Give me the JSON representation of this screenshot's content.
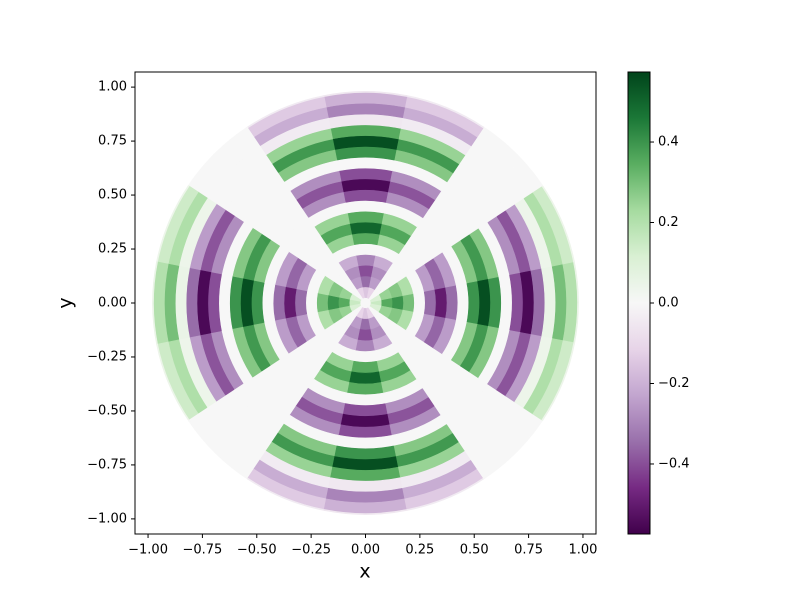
{
  "chart_data": {
    "type": "polar-field",
    "xlabel": "x",
    "ylabel": "y",
    "xlim": [
      -1.06,
      1.06
    ],
    "ylim": [
      -1.07,
      1.07
    ],
    "xticks": [
      {
        "value": -1,
        "label": "−1.00"
      },
      {
        "value": -0.75,
        "label": "−0.75"
      },
      {
        "value": -0.5,
        "label": "−0.50"
      },
      {
        "value": -0.25,
        "label": "−0.25"
      },
      {
        "value": 0,
        "label": "0.00"
      },
      0.25,
      {
        "value": 0.5,
        "label": "0.50"
      },
      0.75,
      {
        "value": 1,
        "label": "1.00"
      }
    ],
    "yticks": [
      {
        "value": -1,
        "label": "−1.00"
      },
      {
        "value": -0.75,
        "label": "−0.75"
      },
      {
        "value": -0.5,
        "label": "−0.50"
      },
      {
        "value": -0.25,
        "label": "−0.25"
      },
      {
        "value": 0,
        "label": "0.00"
      },
      0.25,
      {
        "value": 0.5,
        "label": "0.50"
      },
      0.75,
      {
        "value": 1,
        "label": "1.00"
      }
    ],
    "colormap": [
      "#40004b",
      "#762a83",
      "#9970ab",
      "#c2a5cf",
      "#e7d4e8",
      "#f7f7f7",
      "#d9f0d3",
      "#a6dba0",
      "#5aae61",
      "#1b7837",
      "#00441b"
    ],
    "zlim": [
      -0.574,
      0.574
    ],
    "zticks": [
      {
        "value": -0.4,
        "label": "−0.4"
      },
      {
        "value": -0.2,
        "label": "−0.2"
      },
      {
        "value": 0,
        "label": "0.0"
      },
      0.2,
      0.4
    ],
    "r": [
      0,
      0.05,
      0.1,
      0.15,
      0.2,
      0.25,
      0.3,
      0.35,
      0.4,
      0.45,
      0.5,
      0.55,
      0.6,
      0.65,
      0.7,
      0.75,
      0.8,
      0.85,
      0.9,
      0.95,
      1.0
    ],
    "theta": [
      0,
      22.5,
      45,
      67.5,
      90,
      112.5,
      135,
      157.5,
      180,
      202.5,
      225,
      247.5,
      270,
      292.5,
      315,
      337.5
    ],
    "z": [
      [
        0,
        0.15,
        0.35,
        0.4,
        0.3,
        0,
        -0.35,
        -0.5,
        -0.35,
        0,
        0.4,
        0.55,
        0.4,
        0,
        -0.4,
        -0.55,
        -0.35,
        0.05,
        0.3,
        0.2,
        0.05
      ],
      [
        0,
        0.11,
        0.25,
        0.28,
        0.21,
        0,
        -0.25,
        -0.36,
        -0.25,
        0,
        0.28,
        0.39,
        0.28,
        0,
        -0.28,
        -0.39,
        -0.25,
        0.04,
        0.21,
        0.14,
        0.04
      ],
      [
        0,
        0,
        0,
        0,
        0,
        0,
        0,
        0,
        0,
        0,
        0,
        0,
        0,
        0,
        0,
        0,
        0,
        0,
        0,
        0,
        0
      ],
      [
        0,
        -0.11,
        -0.25,
        -0.28,
        -0.21,
        0,
        0.25,
        0.36,
        0.25,
        0,
        -0.28,
        -0.39,
        -0.28,
        0,
        0.28,
        0.39,
        0.25,
        -0.04,
        -0.21,
        -0.14,
        -0.04
      ],
      [
        0,
        -0.15,
        -0.35,
        -0.4,
        -0.3,
        0,
        0.35,
        0.5,
        0.35,
        0,
        -0.4,
        -0.55,
        -0.4,
        0,
        0.4,
        0.55,
        0.35,
        -0.05,
        -0.3,
        -0.2,
        -0.05
      ],
      [
        0,
        -0.11,
        -0.25,
        -0.28,
        -0.21,
        0,
        0.25,
        0.36,
        0.25,
        0,
        -0.28,
        -0.39,
        -0.28,
        0,
        0.28,
        0.39,
        0.25,
        -0.04,
        -0.21,
        -0.14,
        -0.04
      ],
      [
        0,
        0,
        0,
        0,
        0,
        0,
        0,
        0,
        0,
        0,
        0,
        0,
        0,
        0,
        0,
        0,
        0,
        0,
        0,
        0,
        0
      ],
      [
        0,
        0.11,
        0.25,
        0.28,
        0.21,
        0,
        -0.25,
        -0.36,
        -0.25,
        0,
        0.28,
        0.39,
        0.28,
        0,
        -0.28,
        -0.39,
        -0.25,
        0.04,
        0.21,
        0.14,
        0.04
      ],
      [
        0,
        0.15,
        0.35,
        0.4,
        0.3,
        0,
        -0.35,
        -0.5,
        -0.35,
        0,
        0.4,
        0.55,
        0.4,
        0,
        -0.4,
        -0.55,
        -0.35,
        0.05,
        0.3,
        0.2,
        0.05
      ],
      [
        0,
        0.11,
        0.25,
        0.28,
        0.21,
        0,
        -0.25,
        -0.36,
        -0.25,
        0,
        0.28,
        0.39,
        0.28,
        0,
        -0.28,
        -0.39,
        -0.25,
        0.04,
        0.21,
        0.14,
        0.04
      ],
      [
        0,
        0,
        0,
        0,
        0,
        0,
        0,
        0,
        0,
        0,
        0,
        0,
        0,
        0,
        0,
        0,
        0,
        0,
        0,
        0,
        0
      ],
      [
        0,
        -0.11,
        -0.25,
        -0.28,
        -0.21,
        0,
        0.25,
        0.36,
        0.25,
        0,
        -0.28,
        -0.39,
        -0.28,
        0,
        0.28,
        0.39,
        0.25,
        -0.04,
        -0.21,
        -0.14,
        -0.04
      ],
      [
        0,
        -0.15,
        -0.35,
        -0.4,
        -0.3,
        0,
        0.35,
        0.5,
        0.35,
        0,
        -0.4,
        -0.55,
        -0.4,
        0,
        0.4,
        0.55,
        0.35,
        -0.05,
        -0.3,
        -0.2,
        -0.05
      ],
      [
        0,
        -0.11,
        -0.25,
        -0.28,
        -0.21,
        0,
        0.25,
        0.36,
        0.25,
        0,
        -0.28,
        -0.39,
        -0.28,
        0,
        0.28,
        0.39,
        0.25,
        -0.04,
        -0.21,
        -0.14,
        -0.04
      ],
      [
        0,
        0,
        0,
        0,
        0,
        0,
        0,
        0,
        0,
        0,
        0,
        0,
        0,
        0,
        0,
        0,
        0,
        0,
        0,
        0,
        0
      ],
      [
        0,
        0.11,
        0.25,
        0.28,
        0.21,
        0,
        -0.25,
        -0.36,
        -0.25,
        0,
        0.28,
        0.39,
        0.28,
        0,
        -0.28,
        -0.39,
        -0.25,
        0.04,
        0.21,
        0.14,
        0.04
      ]
    ]
  }
}
